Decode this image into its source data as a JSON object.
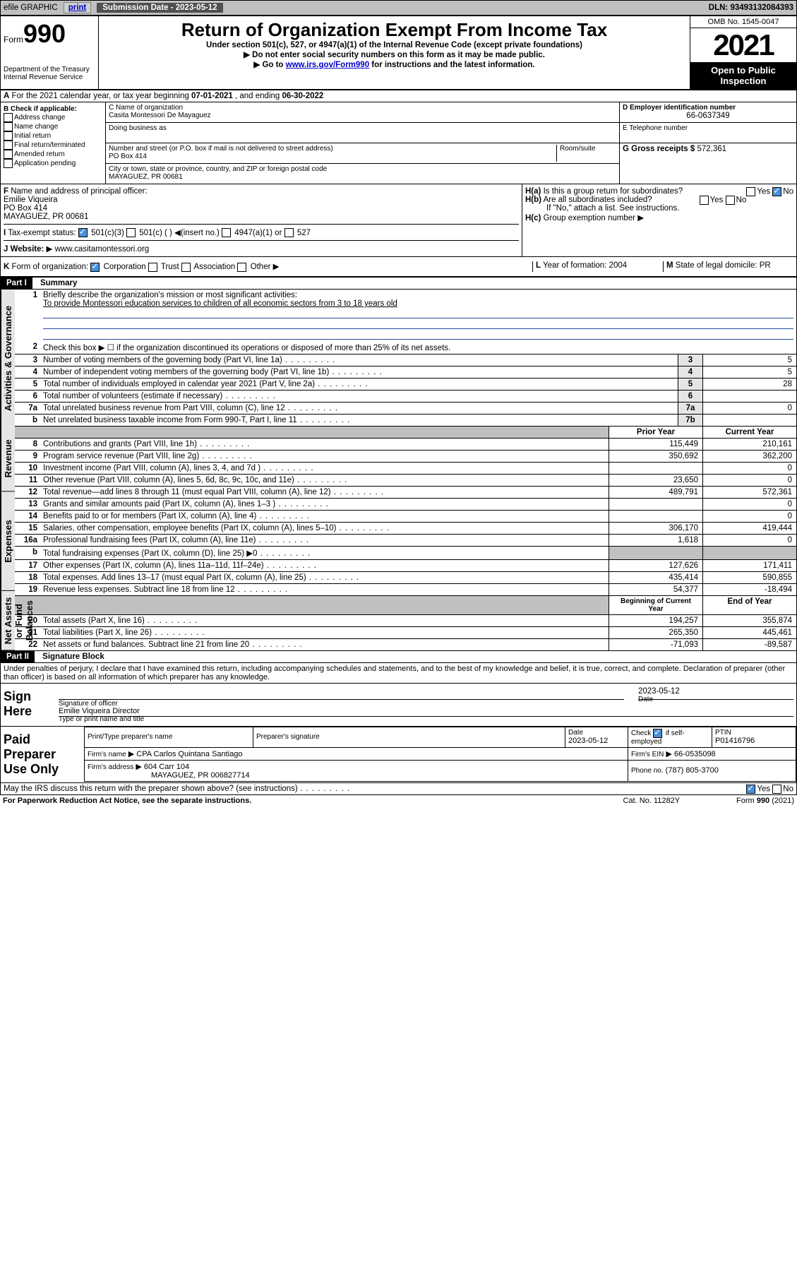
{
  "topbar": {
    "efile_label": "efile GRAPHIC",
    "print_label": "print",
    "sub_date_label": "Submission Date - 2023-05-12",
    "dln_label": "DLN: 93493132084393"
  },
  "header": {
    "form_label": "Form",
    "form_number": "990",
    "dept_label": "Department of the Treasury",
    "irs_label": "Internal Revenue Service",
    "main_title": "Return of Organization Exempt From Income Tax",
    "subtitle1": "Under section 501(c), 527, or 4947(a)(1) of the Internal Revenue Code (except private foundations)",
    "subtitle2": "Do not enter social security numbers on this form as it may be made public.",
    "subtitle3_pre": "Go to ",
    "subtitle3_link": "www.irs.gov/Form990",
    "subtitle3_post": " for instructions and the latest information.",
    "omb": "OMB No. 1545-0047",
    "year": "2021",
    "open_pub": "Open to Public Inspection",
    "arrow_char": "▶"
  },
  "row_a": {
    "label_a": "A",
    "text": "For the 2021 calendar year, or tax year beginning ",
    "begin": "07-01-2021",
    "mid": ", and ending ",
    "end": "06-30-2022"
  },
  "col_b": {
    "label": "B Check if applicable:",
    "items": [
      "Address change",
      "Name change",
      "Initial return",
      "Final return/terminated",
      "Amended return",
      "Application pending"
    ]
  },
  "org": {
    "c_label": "C Name of organization",
    "name": "Casita Montessori De Mayaguez",
    "dba_label": "Doing business as",
    "addr_label": "Number and street (or P.O. box if mail is not delivered to street address)",
    "room_label": "Room/suite",
    "addr": "PO Box 414",
    "city_label": "City or town, state or province, country, and ZIP or foreign postal code",
    "city": "MAYAGUEZ, PR  00681"
  },
  "col_d": {
    "d_label": "D Employer identification number",
    "ein": "66-0637349",
    "e_label": "E Telephone number",
    "phone": "",
    "g_label": "G Gross receipts $",
    "g_val": "572,361"
  },
  "row_f": {
    "label": "F",
    "text": "Name and address of principal officer:",
    "name": "Emilie Viqueira",
    "addr1": "PO Box 414",
    "addr2": "MAYAGUEZ, PR  00681"
  },
  "row_h": {
    "ha_label": "H(a)",
    "ha_text": "Is this a group return for subordinates?",
    "hb_label": "H(b)",
    "hb_text": "Are all subordinates included?",
    "hb_note": "If \"No,\" attach a list. See instructions.",
    "hc_label": "H(c)",
    "hc_text": "Group exemption number",
    "yes": "Yes",
    "no": "No"
  },
  "row_i": {
    "label": "I",
    "text": "Tax-exempt status:",
    "opts": [
      "501(c)(3)",
      "501(c) (  )",
      "(insert no.)",
      "4947(a)(1) or",
      "527"
    ]
  },
  "row_j": {
    "label": "J",
    "text": "Website:",
    "val": "www.casitamontessori.org"
  },
  "row_k": {
    "label": "K",
    "text": "Form of organization:",
    "opts": [
      "Corporation",
      "Trust",
      "Association",
      "Other"
    ]
  },
  "row_l": {
    "label": "L",
    "text": "Year of formation:",
    "val": "2004"
  },
  "row_m": {
    "label": "M",
    "text": "State of legal domicile:",
    "val": "PR"
  },
  "part1": {
    "hdr": "Part I",
    "title": "Summary",
    "vlabel_gov": "Activities & Governance",
    "vlabel_rev": "Revenue",
    "vlabel_exp": "Expenses",
    "vlabel_net": "Net Assets or Fund Balances",
    "line1_label": "Briefly describe the organization's mission or most significant activities:",
    "mission": "To provide Montessori education services to children of all economic sectors from 3 to 18 years old",
    "line2": "Check this box ▶ ☐ if the organization discontinued its operations or disposed of more than 25% of its net assets.",
    "lines_gov": [
      {
        "n": "3",
        "t": "Number of voting members of the governing body (Part VI, line 1a)",
        "box": "3",
        "v": "5"
      },
      {
        "n": "4",
        "t": "Number of independent voting members of the governing body (Part VI, line 1b)",
        "box": "4",
        "v": "5"
      },
      {
        "n": "5",
        "t": "Total number of individuals employed in calendar year 2021 (Part V, line 2a)",
        "box": "5",
        "v": "28"
      },
      {
        "n": "6",
        "t": "Total number of volunteers (estimate if necessary)",
        "box": "6",
        "v": ""
      },
      {
        "n": "7a",
        "t": "Total unrelated business revenue from Part VIII, column (C), line 12",
        "box": "7a",
        "v": "0"
      },
      {
        "n": "b",
        "t": "Net unrelated business taxable income from Form 990-T, Part I, line 11",
        "box": "7b",
        "v": ""
      }
    ],
    "col_prior": "Prior Year",
    "col_curr": "Current Year",
    "lines_rev": [
      {
        "n": "8",
        "t": "Contributions and grants (Part VIII, line 1h)",
        "p": "115,449",
        "c": "210,161"
      },
      {
        "n": "9",
        "t": "Program service revenue (Part VIII, line 2g)",
        "p": "350,692",
        "c": "362,200"
      },
      {
        "n": "10",
        "t": "Investment income (Part VIII, column (A), lines 3, 4, and 7d )",
        "p": "",
        "c": "0"
      },
      {
        "n": "11",
        "t": "Other revenue (Part VIII, column (A), lines 5, 6d, 8c, 9c, 10c, and 11e)",
        "p": "23,650",
        "c": "0"
      },
      {
        "n": "12",
        "t": "Total revenue—add lines 8 through 11 (must equal Part VIII, column (A), line 12)",
        "p": "489,791",
        "c": "572,361"
      }
    ],
    "lines_exp": [
      {
        "n": "13",
        "t": "Grants and similar amounts paid (Part IX, column (A), lines 1–3 )",
        "p": "",
        "c": "0"
      },
      {
        "n": "14",
        "t": "Benefits paid to or for members (Part IX, column (A), line 4)",
        "p": "",
        "c": "0"
      },
      {
        "n": "15",
        "t": "Salaries, other compensation, employee benefits (Part IX, column (A), lines 5–10)",
        "p": "306,170",
        "c": "419,444"
      },
      {
        "n": "16a",
        "t": "Professional fundraising fees (Part IX, column (A), line 11e)",
        "p": "1,618",
        "c": "0"
      },
      {
        "n": "b",
        "t": "Total fundraising expenses (Part IX, column (D), line 25) ▶0",
        "p": "shade",
        "c": "shade"
      },
      {
        "n": "17",
        "t": "Other expenses (Part IX, column (A), lines 11a–11d, 11f–24e)",
        "p": "127,626",
        "c": "171,411"
      },
      {
        "n": "18",
        "t": "Total expenses. Add lines 13–17 (must equal Part IX, column (A), line 25)",
        "p": "435,414",
        "c": "590,855"
      },
      {
        "n": "19",
        "t": "Revenue less expenses. Subtract line 18 from line 12",
        "p": "54,377",
        "c": "-18,494"
      }
    ],
    "col_beg": "Beginning of Current Year",
    "col_end": "End of Year",
    "lines_net": [
      {
        "n": "20",
        "t": "Total assets (Part X, line 16)",
        "p": "194,257",
        "c": "355,874"
      },
      {
        "n": "21",
        "t": "Total liabilities (Part X, line 26)",
        "p": "265,350",
        "c": "445,461"
      },
      {
        "n": "22",
        "t": "Net assets or fund balances. Subtract line 21 from line 20",
        "p": "-71,093",
        "c": "-89,587"
      }
    ]
  },
  "part2": {
    "hdr": "Part II",
    "title": "Signature Block",
    "penalty": "Under penalties of perjury, I declare that I have examined this return, including accompanying schedules and statements, and to the best of my knowledge and belief, it is true, correct, and complete. Declaration of preparer (other than officer) is based on all information of which preparer has any knowledge.",
    "sign_here": "Sign Here",
    "sig_officer": "Signature of officer",
    "date_lbl": "Date",
    "date_val": "2023-05-12",
    "name_title": "Emilie Viqueira  Director",
    "name_title_lbl": "Type or print name and title",
    "paid": "Paid Preparer Use Only",
    "prep_name_lbl": "Print/Type preparer's name",
    "prep_sig_lbl": "Preparer's signature",
    "prep_date_lbl": "Date",
    "prep_date": "2023-05-12",
    "check_if": "Check",
    "self_emp": "if self-employed",
    "ptin_lbl": "PTIN",
    "ptin": "P01416796",
    "firm_name_lbl": "Firm's name",
    "firm_name": "CPA Carlos Quintana Santiago",
    "firm_ein_lbl": "Firm's EIN",
    "firm_ein": "66-0535098",
    "firm_addr_lbl": "Firm's address",
    "firm_addr1": "604 Carr 104",
    "firm_addr2": "MAYAGUEZ, PR  006827714",
    "phone_lbl": "Phone no.",
    "phone": "(787) 805-3700"
  },
  "footer": {
    "may_irs": "May the IRS discuss this return with the preparer shown above? (see instructions)",
    "paperwork": "For Paperwork Reduction Act Notice, see the separate instructions.",
    "catno": "Cat. No. 11282Y",
    "formno": "Form 990 (2021)",
    "yes": "Yes",
    "no": "No"
  },
  "colors": {
    "shade": "#c0c0c0",
    "link": "#0000cc",
    "check": "#4a90d9"
  }
}
